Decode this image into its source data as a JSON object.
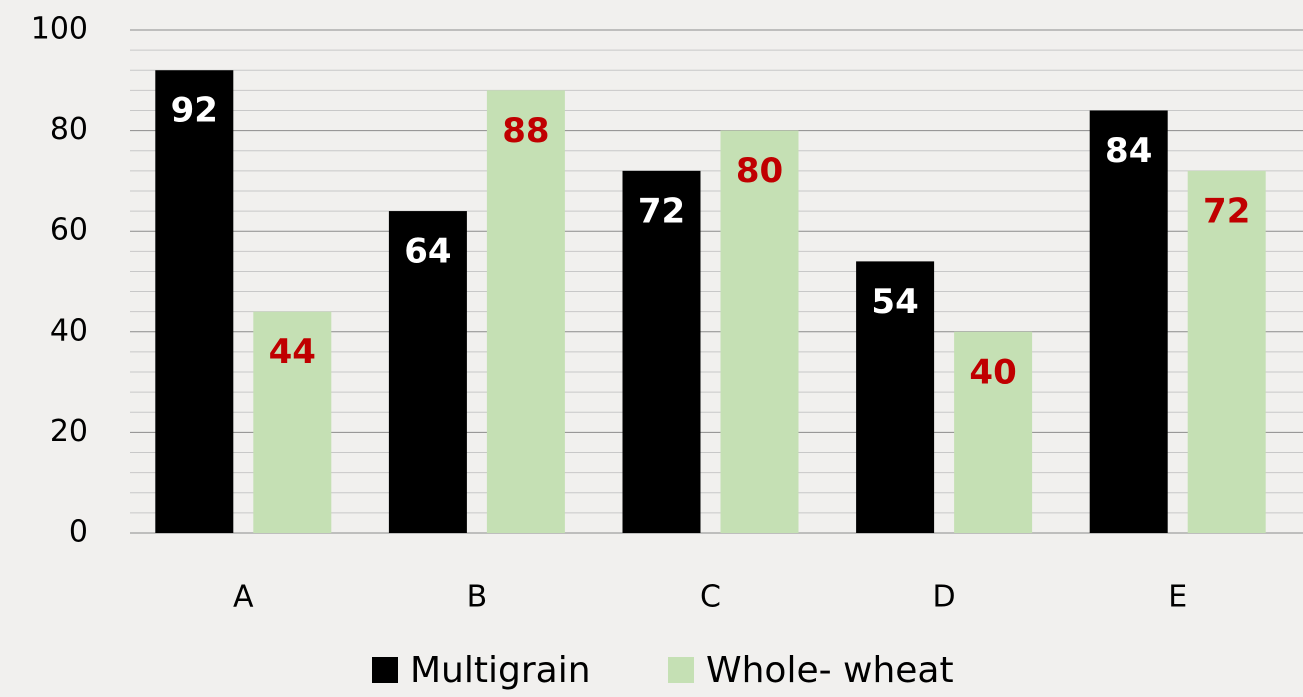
{
  "chart_data": {
    "type": "bar",
    "categories": [
      "A",
      "B",
      "C",
      "D",
      "E"
    ],
    "series": [
      {
        "name": "Multigrain",
        "color": "#000000",
        "label_color": "#ffffff",
        "values": [
          92,
          64,
          72,
          54,
          84
        ]
      },
      {
        "name": "Whole- wheat",
        "color": "#c5e0b4",
        "label_color": "#c00000",
        "values": [
          44,
          88,
          80,
          40,
          72
        ]
      }
    ],
    "ylim": [
      0,
      100
    ],
    "yticks": [
      0,
      20,
      40,
      60,
      80,
      100
    ],
    "minor_yticks": [
      4,
      8,
      12,
      16,
      24,
      28,
      32,
      36,
      44,
      48,
      52,
      56,
      64,
      68,
      72,
      76,
      84,
      88,
      92,
      96
    ],
    "grid": true,
    "legend": "bottom"
  }
}
